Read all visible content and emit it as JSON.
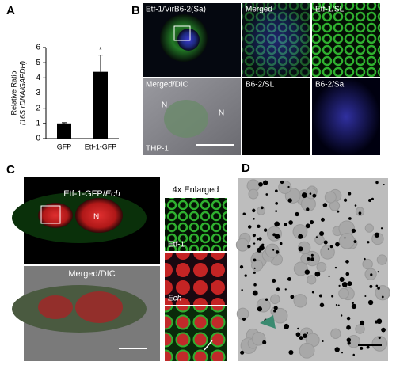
{
  "panel_labels": [
    "A",
    "B",
    "C",
    "D"
  ],
  "chart_data": {
    "type": "bar",
    "ylabel": [
      "Relative Ratio",
      "(16S rDNA/GAPDH)"
    ],
    "categories": [
      "GFP",
      "Etf-1-GFP"
    ],
    "values": [
      1,
      4.4
    ],
    "errors": [
      0.05,
      1.1
    ],
    "color": "#000000",
    "ylim": [
      0,
      6
    ],
    "yticks": [
      0,
      1,
      2,
      3,
      4,
      5,
      6
    ],
    "annotation": "*"
  },
  "panel_b": {
    "labels": [
      "Etf-1/VirB6-2(Sa)",
      "Merged",
      "Etf-1/SL",
      "Merged/DIC",
      "B6-2/SL",
      "B6-2/Sa"
    ],
    "nucleus_marks": [
      "N",
      "N"
    ],
    "cell_line": "THP-1"
  },
  "panel_c": {
    "title": [
      "Etf-1-GFP/",
      "Ech"
    ],
    "enlarged": "4x Enlarged",
    "nucleus": "N",
    "merged": "Merged/DIC",
    "insets": [
      "Etf-1",
      "Ech"
    ]
  }
}
